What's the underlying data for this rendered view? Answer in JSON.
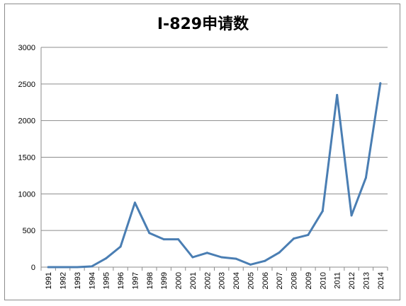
{
  "chart_data": {
    "type": "line",
    "title": "I-829申请数",
    "xlabel": "",
    "ylabel": "",
    "ylim": [
      0,
      3000
    ],
    "yticks": [
      0,
      500,
      1000,
      1500,
      2000,
      2500,
      3000
    ],
    "grid": true,
    "legend": "none",
    "categories": [
      "1991",
      "1992",
      "1993",
      "1994",
      "1995",
      "1996",
      "1997",
      "1998",
      "1999",
      "2000",
      "2001",
      "2002",
      "2003",
      "2004",
      "2005",
      "2006",
      "2007",
      "2008",
      "2009",
      "2010",
      "2011",
      "2012",
      "2013",
      "2014"
    ],
    "series": [
      {
        "color": "#4a7eb3",
        "values": [
          0,
          0,
          0,
          10,
          120,
          280,
          880,
          465,
          380,
          380,
          135,
          195,
          135,
          115,
          35,
          85,
          200,
          390,
          440,
          765,
          2350,
          705,
          1220,
          2510
        ]
      }
    ]
  }
}
